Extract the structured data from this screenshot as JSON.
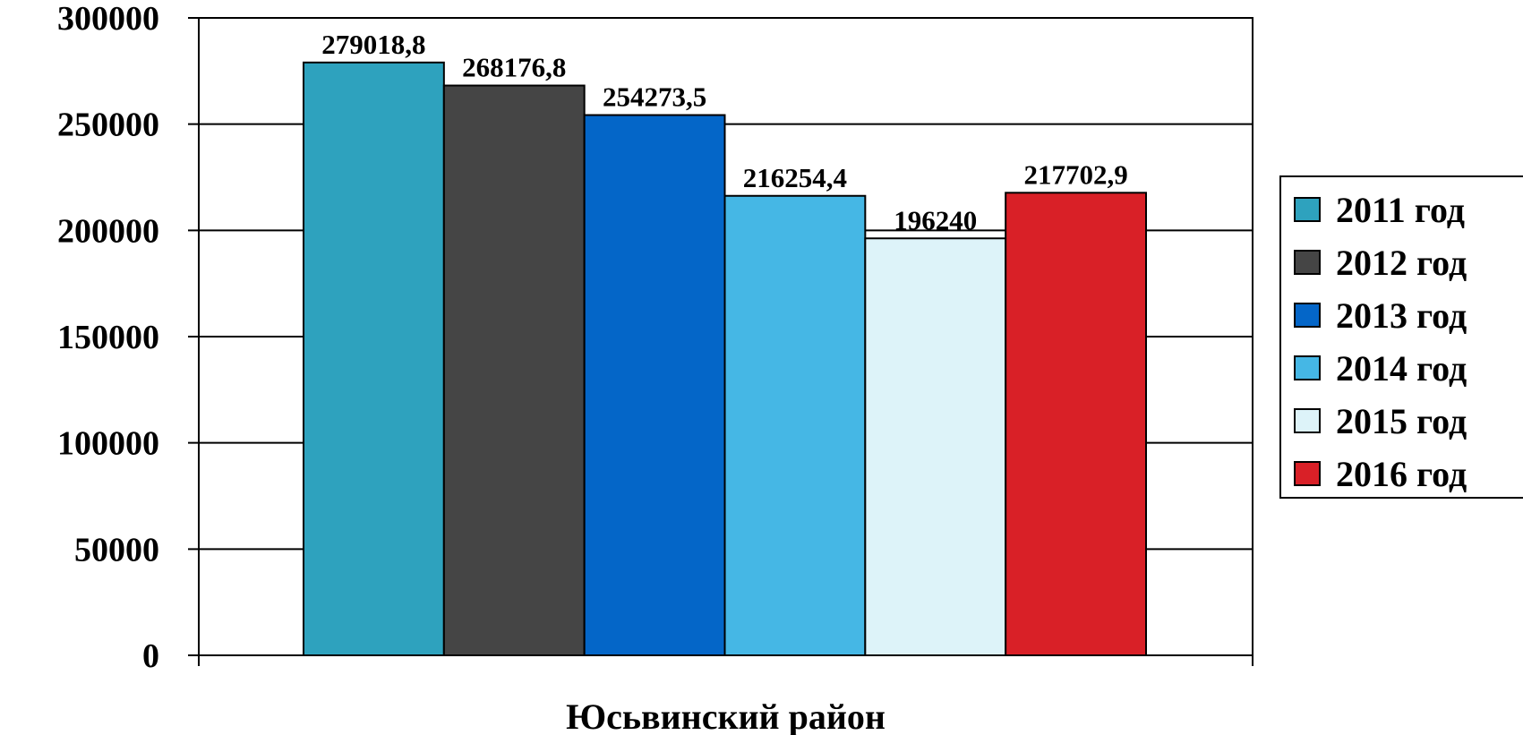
{
  "chart_data": {
    "type": "bar",
    "categories": [
      "Юсьвинский район"
    ],
    "xlabel": "Юсьвинский район",
    "ylabel": "",
    "title": "",
    "ylim": [
      0,
      300000
    ],
    "yticks": [
      0,
      50000,
      100000,
      150000,
      200000,
      250000,
      300000
    ],
    "ytick_labels": [
      "0",
      "50000",
      "100000",
      "150000",
      "200000",
      "250000",
      "300000"
    ],
    "grid": true,
    "legend_position": "right",
    "series": [
      {
        "name": "2011 год",
        "values": [
          279018.8
        ],
        "label": "279018,8",
        "color": "#2ea2be"
      },
      {
        "name": "2012 год",
        "values": [
          268176.8
        ],
        "label": "268176,8",
        "color": "#454545"
      },
      {
        "name": "2013 год",
        "values": [
          254273.5
        ],
        "label": "254273,5",
        "color": "#0466c8"
      },
      {
        "name": "2014 год",
        "values": [
          216254.4
        ],
        "label": "216254,4",
        "color": "#45b7e5"
      },
      {
        "name": "2015 год",
        "values": [
          196240
        ],
        "label": "196240",
        "color": "#ddf3f9"
      },
      {
        "name": "2016 год",
        "values": [
          217702.9
        ],
        "label": "217702,9",
        "color": "#d92027"
      }
    ]
  }
}
